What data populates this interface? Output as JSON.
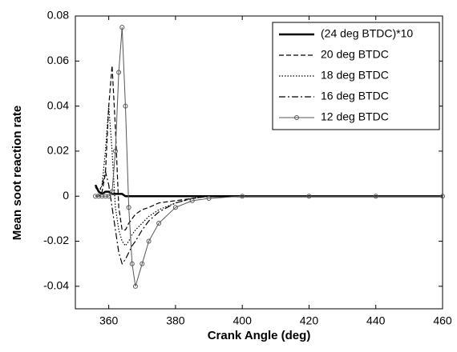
{
  "chart_data": {
    "type": "line",
    "xlabel": "Crank Angle (deg)",
    "ylabel": "Mean soot reaction rate",
    "x": [
      356,
      357,
      358,
      359,
      360,
      361,
      362,
      363,
      364,
      365,
      366,
      367,
      368,
      370,
      372,
      375,
      380,
      385,
      390,
      400,
      420,
      440,
      460
    ],
    "series": [
      {
        "name": "(24 deg BTDC)*10",
        "color": "#000000",
        "style": "solid",
        "width": 2.5,
        "values": [
          0.005,
          0.002,
          0.001,
          0.002,
          0.002,
          0.001,
          0.001,
          0.001,
          0.001,
          0,
          0,
          0,
          0,
          0,
          0,
          0,
          0,
          0,
          0,
          0,
          0,
          0,
          0
        ]
      },
      {
        "name": "20 deg BTDC",
        "color": "#000000",
        "style": "dashed",
        "width": 1.2,
        "values": [
          0,
          0,
          0.002,
          0.01,
          0.04,
          0.058,
          0.03,
          -0.005,
          -0.015,
          -0.015,
          -0.012,
          -0.01,
          -0.008,
          -0.006,
          -0.005,
          -0.003,
          -0.002,
          -0.001,
          0,
          0,
          0,
          0,
          0
        ]
      },
      {
        "name": "18 deg BTDC",
        "color": "#000000",
        "style": "dotted",
        "width": 1.2,
        "values": [
          0,
          0.001,
          0.005,
          0.02,
          0.04,
          0.02,
          -0.005,
          -0.015,
          -0.02,
          -0.022,
          -0.02,
          -0.017,
          -0.015,
          -0.012,
          -0.009,
          -0.006,
          -0.003,
          -0.001,
          0,
          0,
          0,
          0,
          0
        ]
      },
      {
        "name": "16 deg BTDC",
        "color": "#000000",
        "style": "dashdot",
        "width": 1.2,
        "values": [
          0.004,
          0.002,
          0.005,
          0.011,
          0.005,
          -0.005,
          -0.015,
          -0.025,
          -0.03,
          -0.028,
          -0.025,
          -0.022,
          -0.02,
          -0.015,
          -0.011,
          -0.007,
          -0.003,
          -0.001,
          0,
          0,
          0,
          0,
          0
        ]
      },
      {
        "name": "12 deg BTDC",
        "color": "#555555",
        "style": "solid",
        "width": 1,
        "marker": "circle",
        "values": [
          0,
          0,
          0,
          0,
          0,
          0.002,
          0.02,
          0.055,
          0.075,
          0.04,
          -0.005,
          -0.03,
          -0.04,
          -0.03,
          -0.02,
          -0.012,
          -0.005,
          -0.002,
          -0.001,
          0,
          0,
          0,
          0
        ]
      }
    ],
    "xlim": [
      350,
      460
    ],
    "xticks": [
      360,
      380,
      400,
      420,
      440,
      460
    ],
    "ylim": [
      -0.05,
      0.08
    ],
    "yticks": [
      -0.04,
      -0.02,
      0,
      0.02,
      0.04,
      0.06,
      0.08
    ],
    "legend": "upper right"
  }
}
